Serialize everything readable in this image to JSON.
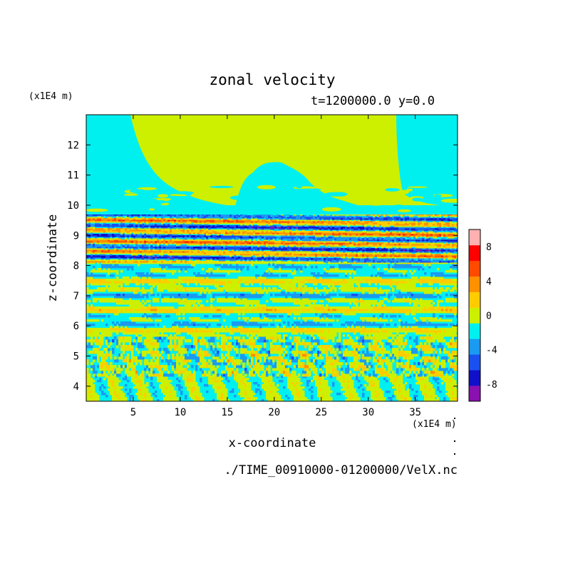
{
  "chart_data": {
    "type": "heatmap",
    "title": "zonal velocity",
    "subtitle": "t=1200000.0 y=0.0",
    "xlabel": "x-coordinate",
    "ylabel": "z-coordinate",
    "x_units": "(x1E4 m)",
    "y_units": "(x1E4 m)",
    "source_file": "./TIME_00910000-01200000/VelX.nc",
    "xlim": [
      0,
      39.5
    ],
    "ylim": [
      3.5,
      13
    ],
    "x_ticks": [
      5,
      10,
      15,
      20,
      25,
      30,
      35
    ],
    "x_tick_labels": [
      "5",
      "10",
      "15",
      "20",
      "25",
      "30",
      "35"
    ],
    "y_ticks": [
      4,
      5,
      6,
      7,
      8,
      9,
      10,
      11,
      12
    ],
    "y_tick_labels": [
      "4",
      "5",
      "6",
      "7",
      "8",
      "9",
      "10",
      "11",
      "12"
    ],
    "colorbar": {
      "levels": [
        -10,
        -8,
        -6,
        -4,
        -2,
        0,
        2,
        4,
        6,
        8,
        10
      ],
      "colors": [
        "#8a10b0",
        "#1010c8",
        "#1a50f0",
        "#1a9af0",
        "#00f0f0",
        "#ccf000",
        "#ffcc00",
        "#ff9000",
        "#ff4a00",
        "#ff0000",
        "#ffb0b0"
      ],
      "tick_values": [
        -8,
        -4,
        0,
        4,
        8
      ],
      "tick_labels": [
        "-8",
        "-4",
        "0",
        "4",
        "8"
      ]
    },
    "regions": [
      {
        "z_range": [
          9.8,
          13
        ],
        "description": "mostly 0 to 2 with a -2 to 0 dome near x 16-25 and -2 to 0 on both flanks"
      },
      {
        "z_range": [
          8.2,
          9.8
        ],
        "description": "strong layered jets between -8 and 8"
      },
      {
        "z_range": [
          5.7,
          8.2
        ],
        "description": "alternating thin layers -2 to 2"
      },
      {
        "z_range": [
          4.4,
          5.7
        ],
        "description": "turbulent cells -6 to 6"
      },
      {
        "z_range": [
          3.5,
          4.4
        ],
        "description": "columnar pattern -2 to 2"
      }
    ]
  }
}
